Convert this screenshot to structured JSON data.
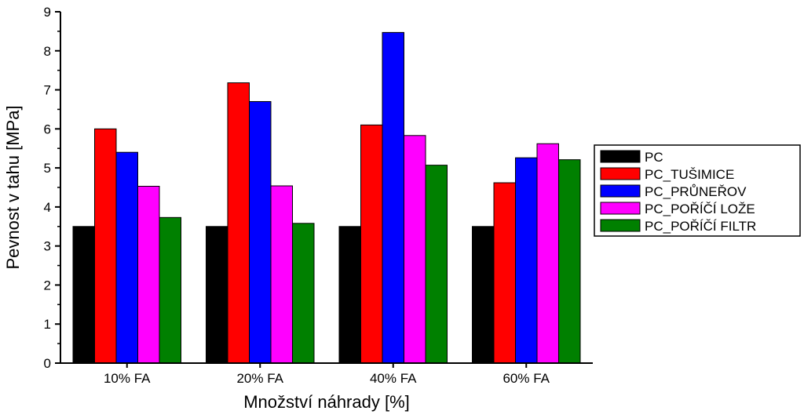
{
  "chart_data": {
    "type": "bar",
    "title": "",
    "xlabel": "Množství náhrady [%]",
    "ylabel": "Pevnost v tahu [MPa]",
    "ylim": [
      0,
      9
    ],
    "yticks": [
      "0",
      "1",
      "2",
      "3",
      "4",
      "5",
      "6",
      "7",
      "8",
      "9"
    ],
    "categories": [
      "10% FA",
      "20% FA",
      "40% FA",
      "60% FA"
    ],
    "legend_position": "right",
    "grid": false,
    "series": [
      {
        "name": "PC",
        "color": "#000000",
        "values": [
          3.5,
          3.5,
          3.5,
          3.5
        ]
      },
      {
        "name": "PC_TUŠIMICE",
        "color": "#ff0000",
        "values": [
          6.0,
          7.18,
          6.1,
          4.62
        ]
      },
      {
        "name": "PC_PRŮNEŘOV",
        "color": "#0000ff",
        "values": [
          5.4,
          6.7,
          8.47,
          5.26
        ]
      },
      {
        "name": "PC_POŘÍČÍ LOŽE",
        "color": "#ff00ff",
        "values": [
          4.53,
          4.54,
          5.83,
          5.62
        ]
      },
      {
        "name": "PC_POŘÍČÍ FILTR",
        "color": "#008000",
        "values": [
          3.73,
          3.58,
          5.07,
          5.21
        ]
      }
    ]
  }
}
